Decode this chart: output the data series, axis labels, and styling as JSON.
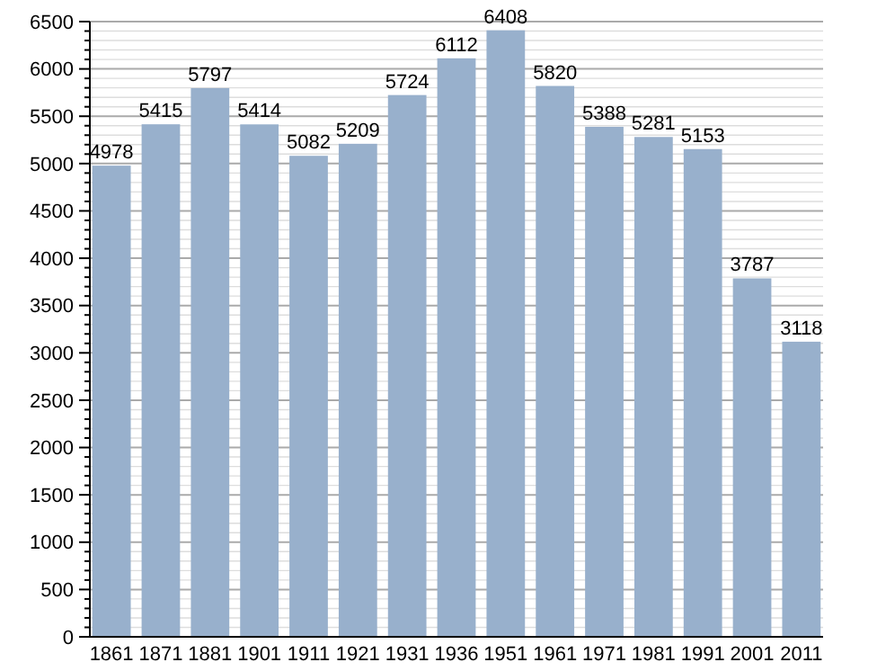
{
  "chart_data": {
    "type": "bar",
    "categories": [
      "1861",
      "1871",
      "1881",
      "1901",
      "1911",
      "1921",
      "1931",
      "1936",
      "1951",
      "1961",
      "1971",
      "1981",
      "1991",
      "2001",
      "2011"
    ],
    "values": [
      4978,
      5415,
      5797,
      5414,
      5082,
      5209,
      5724,
      6112,
      6408,
      5820,
      5388,
      5281,
      5153,
      3787,
      3118
    ],
    "color": "#98b0cc",
    "ylim": [
      0,
      6500
    ],
    "yticks": [
      0,
      {
        "value": 100,
        "label": null
      },
      {
        "value": 200,
        "label": null
      },
      {
        "value": 300,
        "label": null
      },
      {
        "value": 400,
        "label": null
      },
      500,
      {
        "value": 600,
        "label": null
      },
      {
        "value": 700,
        "label": null
      },
      {
        "value": 800,
        "label": null
      },
      {
        "value": 900,
        "label": null
      },
      1000,
      {
        "value": 1100,
        "label": null
      },
      {
        "value": 1200,
        "label": null
      },
      {
        "value": 1300,
        "label": null
      },
      {
        "value": 1400,
        "label": null
      },
      1500,
      {
        "value": 1600,
        "label": null
      },
      {
        "value": 1700,
        "label": null
      },
      {
        "value": 1800,
        "label": null
      },
      {
        "value": 1900,
        "label": null
      },
      2000,
      {
        "value": 2100,
        "label": null
      },
      {
        "value": 2200,
        "label": null
      },
      {
        "value": 2300,
        "label": null
      },
      {
        "value": 2400,
        "label": null
      },
      2500,
      {
        "value": 2600,
        "label": null
      },
      {
        "value": 2700,
        "label": null
      },
      {
        "value": 2800,
        "label": null
      },
      {
        "value": 2900,
        "label": null
      },
      3000,
      {
        "value": 3100,
        "label": null
      },
      {
        "value": 3200,
        "label": null
      },
      {
        "value": 3300,
        "label": null
      },
      {
        "value": 3400,
        "label": null
      },
      3500,
      {
        "value": 3600,
        "label": null
      },
      {
        "value": 3700,
        "label": null
      },
      {
        "value": 3800,
        "label": null
      },
      {
        "value": 3900,
        "label": null
      },
      4000,
      {
        "value": 4100,
        "label": null
      },
      {
        "value": 4200,
        "label": null
      },
      {
        "value": 4300,
        "label": null
      },
      {
        "value": 4400,
        "label": null
      },
      4500,
      {
        "value": 4600,
        "label": null
      },
      {
        "value": 4700,
        "label": null
      },
      {
        "value": 4800,
        "label": null
      },
      {
        "value": 4900,
        "label": null
      },
      5000,
      {
        "value": 5100,
        "label": null
      },
      {
        "value": 5200,
        "label": null
      },
      {
        "value": 5300,
        "label": null
      },
      {
        "value": 5400,
        "label": null
      },
      5500,
      {
        "value": 5600,
        "label": null
      },
      {
        "value": 5700,
        "label": null
      },
      {
        "value": 5800,
        "label": null
      },
      {
        "value": 5900,
        "label": null
      },
      6000,
      {
        "value": 6100,
        "label": null
      },
      {
        "value": 6200,
        "label": null
      },
      {
        "value": 6300,
        "label": null
      },
      {
        "value": 6400,
        "label": null
      },
      6500
    ],
    "grid": "y",
    "data_labels": true
  }
}
